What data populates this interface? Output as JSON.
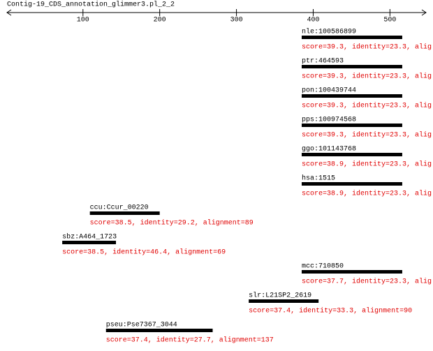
{
  "chart_data": {
    "type": "range",
    "title": "Contig-19_CDS_annotation_glimmer3.pl_2_2",
    "xlim": [
      1,
      547
    ],
    "xticks": [
      100,
      200,
      300,
      400,
      500
    ],
    "color": "#000000",
    "label_color": "#e00000",
    "hits": [
      {
        "name": "nle:100586899",
        "start": 385,
        "end": 516,
        "label": "score=39.3, identity=23.3, alig"
      },
      {
        "name": "ptr:464593",
        "start": 385,
        "end": 516,
        "label": "score=39.3, identity=23.3, alig"
      },
      {
        "name": "pon:100439744",
        "start": 385,
        "end": 516,
        "label": "score=39.3, identity=23.3, alig"
      },
      {
        "name": "pps:100974568",
        "start": 385,
        "end": 516,
        "label": "score=39.3, identity=23.3, alig"
      },
      {
        "name": "ggo:101143768",
        "start": 385,
        "end": 516,
        "label": "score=38.9, identity=23.3, alig"
      },
      {
        "name": "hsa:1515",
        "start": 385,
        "end": 516,
        "label": "score=38.9, identity=23.3, alig"
      },
      {
        "name": "ccu:Ccur_00220",
        "start": 109,
        "end": 200,
        "label": "score=38.5, identity=29.2, alignment=89"
      },
      {
        "name": "sbz:A464_1723",
        "start": 73,
        "end": 143,
        "label": "score=38.5, identity=46.4, alignment=69"
      },
      {
        "name": "mcc:710850",
        "start": 385,
        "end": 516,
        "label": "score=37.7, identity=23.3, alig"
      },
      {
        "name": "slr:L21SP2_2619",
        "start": 316,
        "end": 407,
        "label": "score=37.4, identity=33.3, alignment=90"
      },
      {
        "name": "pseu:Pse7367_3044",
        "start": 130,
        "end": 269,
        "label": "score=37.4, identity=27.7, alignment=137"
      }
    ]
  }
}
